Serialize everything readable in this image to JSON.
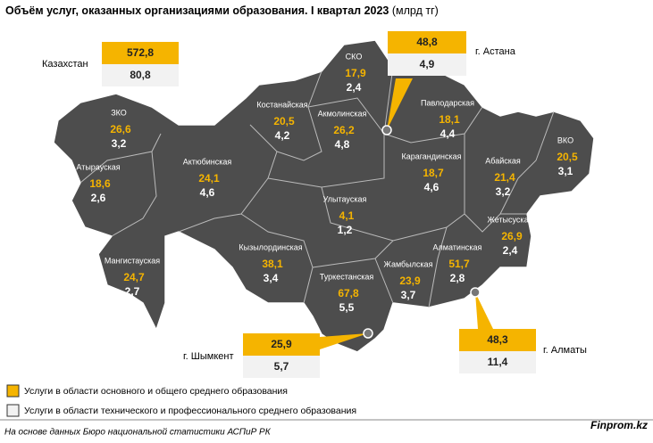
{
  "title": "Объём услуг, оказанных организациями образования. I квартал 2023",
  "unit": "(млрд тг)",
  "regions": [
    {
      "name": "ЗКО",
      "primary": "26,6",
      "secondary": "3,2"
    },
    {
      "name": "Атырауская",
      "primary": "18,6",
      "secondary": "2,6"
    },
    {
      "name": "Актюбинская",
      "primary": "24,1",
      "secondary": "4,6"
    },
    {
      "name": "Мангистауская",
      "primary": "24,7",
      "secondary": "2,7"
    },
    {
      "name": "Костанайская",
      "primary": "20,5",
      "secondary": "4,2"
    },
    {
      "name": "СКО",
      "primary": "17,9",
      "secondary": "2,4"
    },
    {
      "name": "Акмолинская",
      "primary": "26,2",
      "secondary": "4,8"
    },
    {
      "name": "Павлодарская",
      "primary": "18,1",
      "secondary": "4,4"
    },
    {
      "name": "ВКО",
      "primary": "20,5",
      "secondary": "3,1"
    },
    {
      "name": "Карагандинская",
      "primary": "18,7",
      "secondary": "4,6"
    },
    {
      "name": "Абайская",
      "primary": "21,4",
      "secondary": "3,2"
    },
    {
      "name": "Улытауская",
      "primary": "4,1",
      "secondary": "1,2"
    },
    {
      "name": "Жетысуская",
      "primary": "26,9",
      "secondary": "2,4"
    },
    {
      "name": "Алматинская",
      "primary": "51,7",
      "secondary": "2,8"
    },
    {
      "name": "Кызылординская",
      "primary": "38,1",
      "secondary": "3,4"
    },
    {
      "name": "Туркестанская",
      "primary": "67,8",
      "secondary": "5,5"
    },
    {
      "name": "Жамбылская",
      "primary": "23,9",
      "secondary": "3,7"
    }
  ],
  "callouts": [
    {
      "name": "Казахстан",
      "primary": "572,8",
      "secondary": "80,8"
    },
    {
      "name": "г. Астана",
      "primary": "48,8",
      "secondary": "4,9"
    },
    {
      "name": "г. Шымкент",
      "primary": "25,9",
      "secondary": "5,7"
    },
    {
      "name": "г. Алматы",
      "primary": "48,3",
      "secondary": "11,4"
    }
  ],
  "legend": [
    "Услуги в области основного и общего среднего образования",
    "Услуги в области технического и профессионального среднего образования"
  ],
  "source": "На основе данных Бюро национальной статистики АСПиР РК",
  "brand": "Finprom.kz"
}
